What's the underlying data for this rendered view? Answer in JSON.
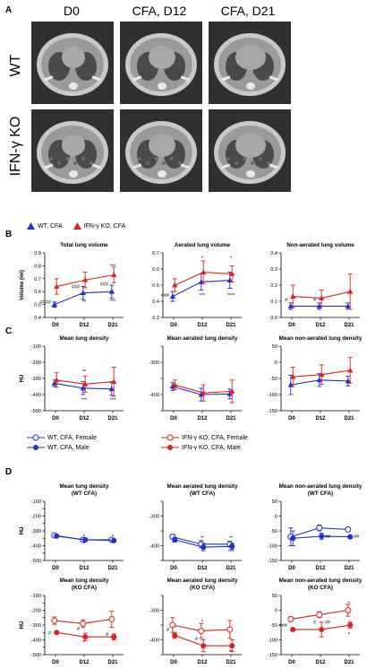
{
  "panelA": {
    "letter": "A",
    "columns": [
      "D0",
      "CFA, D12",
      "CFA, D21"
    ],
    "rows": [
      "WT",
      "IFN-γ KO"
    ]
  },
  "panelB": {
    "letter": "B",
    "legend": [
      {
        "label": "WT, CFA",
        "color": "#1f2fd0"
      },
      {
        "label": "IFN-γ KO, CFA",
        "color": "#e0201f"
      }
    ]
  },
  "panelC": {
    "letter": "C"
  },
  "panelD": {
    "letter": "D",
    "legend": [
      {
        "label": "WT, CFA, Female",
        "color": "#1f2fd0",
        "fill": "open"
      },
      {
        "label": "IFN-γ KO, CFA, Female",
        "color": "#e0201f",
        "fill": "open"
      },
      {
        "label": "WT, CFA, Male",
        "color": "#1f2fd0",
        "fill": "filled"
      },
      {
        "label": "IFN-γ KO, CFA, Male",
        "color": "#e0201f",
        "fill": "filled"
      }
    ]
  },
  "chart_data": [
    {
      "id": "b1",
      "type": "line",
      "title": "Total lung volume",
      "ylabel": "Volume (ml)",
      "categories": [
        "D0",
        "D12",
        "D21"
      ],
      "ylim": [
        0.4,
        0.9
      ],
      "yticks": [
        0.4,
        0.5,
        0.6,
        0.7,
        0.8,
        0.9
      ],
      "ytick_labels": [
        "0.4",
        "0.5",
        "0.6",
        "0.7",
        "0.8",
        "0.9"
      ],
      "series": [
        {
          "color": "#1f2fd0",
          "marker": "triangle",
          "values": [
            0.5,
            0.59,
            0.6
          ],
          "err": [
            0.02,
            0.05,
            0.05
          ]
        },
        {
          "color": "#e0201f",
          "marker": "triangle",
          "values": [
            0.64,
            0.69,
            0.73
          ],
          "err": [
            0.06,
            0.06,
            0.06
          ]
        }
      ],
      "annotations": [
        {
          "x": 0,
          "text": "####",
          "y": 0.52,
          "side": "left"
        },
        {
          "x": 1,
          "text": "###",
          "y": 0.64,
          "side": "left"
        },
        {
          "x": 2,
          "text": "###",
          "y": 0.66,
          "side": "left"
        },
        {
          "x": 1,
          "text": "**",
          "y": 0.52
        },
        {
          "x": 2,
          "text": "***",
          "y": 0.8
        },
        {
          "x": 2,
          "text": "***",
          "y": 0.53
        }
      ]
    },
    {
      "id": "b2",
      "type": "line",
      "title": "Aerated lung volume",
      "ylabel": "",
      "categories": [
        "D0",
        "D12",
        "D21"
      ],
      "ylim": [
        0.3,
        0.7
      ],
      "yticks": [
        0.3,
        0.4,
        0.5,
        0.6,
        0.7
      ],
      "ytick_labels": [
        "0.3",
        "0.4",
        "0.5",
        "0.6",
        "0.7"
      ],
      "series": [
        {
          "color": "#1f2fd0",
          "marker": "triangle",
          "values": [
            0.43,
            0.52,
            0.53
          ],
          "err": [
            0.03,
            0.05,
            0.05
          ]
        },
        {
          "color": "#e0201f",
          "marker": "triangle",
          "values": [
            0.5,
            0.58,
            0.57
          ],
          "err": [
            0.04,
            0.07,
            0.05
          ]
        }
      ],
      "annotations": [
        {
          "x": 0,
          "text": "###",
          "y": 0.44,
          "side": "left"
        },
        {
          "x": 1,
          "text": "*",
          "y": 0.67
        },
        {
          "x": 1,
          "text": "***",
          "y": 0.44
        },
        {
          "x": 2,
          "text": "*",
          "y": 0.67
        },
        {
          "x": 2,
          "text": "****",
          "y": 0.44
        }
      ]
    },
    {
      "id": "b3",
      "type": "line",
      "title": "Non-aerated lung volume",
      "ylabel": "",
      "categories": [
        "D0",
        "D12",
        "D21"
      ],
      "ylim": [
        0.0,
        0.4
      ],
      "yticks": [
        0.0,
        0.1,
        0.2,
        0.3,
        0.4
      ],
      "ytick_labels": [
        "0.0",
        "0.1",
        "0.2",
        "0.3",
        "0.4"
      ],
      "series": [
        {
          "color": "#1f2fd0",
          "marker": "triangle",
          "values": [
            0.07,
            0.07,
            0.07
          ],
          "err": [
            0.02,
            0.02,
            0.02
          ]
        },
        {
          "color": "#e0201f",
          "marker": "triangle",
          "values": [
            0.13,
            0.12,
            0.16
          ],
          "err": [
            0.07,
            0.05,
            0.11
          ]
        }
      ],
      "annotations": [
        {
          "x": 0,
          "text": "#",
          "y": 0.11,
          "side": "left"
        },
        {
          "x": 1,
          "text": "#",
          "y": 0.11,
          "side": "left"
        }
      ]
    },
    {
      "id": "c1",
      "type": "line",
      "title": "Mean lung density",
      "ylabel": "HU",
      "categories": [
        "D0",
        "D12",
        "D21"
      ],
      "ylim": [
        -500,
        -100
      ],
      "yticks": [
        -500,
        -400,
        -300,
        -200,
        -100
      ],
      "ytick_labels": [
        "-500",
        "-400",
        "-300",
        "-200",
        "-100"
      ],
      "series": [
        {
          "color": "#1f2fd0",
          "marker": "triangle",
          "values": [
            -330,
            -360,
            -365
          ],
          "err": [
            20,
            40,
            40
          ]
        },
        {
          "color": "#e0201f",
          "marker": "triangle",
          "values": [
            -310,
            -335,
            -320
          ],
          "err": [
            45,
            50,
            90
          ]
        }
      ],
      "annotations": [
        {
          "x": 1,
          "text": "**",
          "y": -255
        },
        {
          "x": 1,
          "text": "***",
          "y": -430
        },
        {
          "x": 2,
          "text": "***",
          "y": -430
        }
      ]
    },
    {
      "id": "c2",
      "type": "line",
      "title": "Mean aerated lung density",
      "ylabel": "",
      "categories": [
        "D0",
        "D12",
        "D21"
      ],
      "ylim": [
        -450,
        -250
      ],
      "yticks": [
        -450,
        -400,
        -350,
        -300,
        -250
      ],
      "ytick_labels": [
        "",
        "-400",
        "",
        "-300",
        ""
      ],
      "series": [
        {
          "color": "#1f2fd0",
          "marker": "triangle",
          "values": [
            -375,
            -400,
            -398
          ],
          "err": [
            12,
            20,
            15
          ]
        },
        {
          "color": "#e0201f",
          "marker": "triangle",
          "values": [
            -370,
            -395,
            -390
          ],
          "err": [
            15,
            25,
            35
          ]
        }
      ],
      "annotations": []
    },
    {
      "id": "c3",
      "type": "line",
      "title": "Mean non-aerated lung density",
      "ylabel": "",
      "categories": [
        "D0",
        "D12",
        "D21"
      ],
      "ylim": [
        -150,
        50
      ],
      "yticks": [
        -150,
        -100,
        -50,
        0,
        50
      ],
      "ytick_labels": [
        "-150",
        "-100",
        "-50",
        "0",
        "50"
      ],
      "series": [
        {
          "color": "#1f2fd0",
          "marker": "triangle",
          "values": [
            -70,
            -55,
            -58
          ],
          "err": [
            30,
            20,
            15
          ]
        },
        {
          "color": "#e0201f",
          "marker": "triangle",
          "values": [
            -45,
            -38,
            -25
          ],
          "err": [
            30,
            30,
            40
          ]
        }
      ],
      "annotations": []
    },
    {
      "id": "d1",
      "type": "line",
      "title": "Mean lung density",
      "subtitle": "(WT CFA)",
      "ylabel": "HU",
      "categories": [
        "D0",
        "D12",
        "D21"
      ],
      "ylim": [
        -500,
        -100
      ],
      "yticks": [
        -500,
        -450,
        -400,
        -350,
        -300,
        -250,
        -200,
        -150,
        -100
      ],
      "ytick_labels": [
        "-500",
        "",
        "-400",
        "",
        "-300",
        "",
        "-200",
        "",
        "-100"
      ],
      "series": [
        {
          "color": "#1f2fd0",
          "marker": "circle-open",
          "values": [
            -330,
            -360,
            -360
          ],
          "err": [
            8,
            10,
            8
          ]
        },
        {
          "color": "#1f2fd0",
          "marker": "circle",
          "values": [
            -335,
            -360,
            -365
          ],
          "err": [
            8,
            12,
            10
          ]
        }
      ],
      "annotations": [
        {
          "x": 1,
          "text": "*",
          "y": -335
        },
        {
          "x": 1,
          "text": "*",
          "y": -385
        },
        {
          "x": 2,
          "text": "*",
          "y": -335
        },
        {
          "x": 2,
          "text": "*",
          "y": -385
        }
      ]
    },
    {
      "id": "d2",
      "type": "line",
      "title": "Mean aerated lung density",
      "subtitle": "(WT CFA)",
      "ylabel": "",
      "categories": [
        "D0",
        "D12",
        "D21"
      ],
      "ylim": [
        -450,
        -250
      ],
      "yticks": [
        -450,
        -400,
        -350,
        -300,
        -250
      ],
      "ytick_labels": [
        "",
        "-400",
        "",
        "-300",
        ""
      ],
      "series": [
        {
          "color": "#1f2fd0",
          "marker": "circle-open",
          "values": [
            -370,
            -395,
            -395
          ],
          "err": [
            8,
            12,
            10
          ]
        },
        {
          "color": "#1f2fd0",
          "marker": "circle",
          "values": [
            -380,
            -405,
            -402
          ],
          "err": [
            8,
            12,
            10
          ]
        }
      ],
      "annotations": [
        {
          "x": 1,
          "text": "**",
          "y": -372
        },
        {
          "x": 2,
          "text": "**",
          "y": -372
        },
        {
          "x": 2,
          "text": "***",
          "y": -420
        }
      ]
    },
    {
      "id": "d3",
      "type": "line",
      "title": "Mean non-aerated lung density",
      "subtitle": "(WT CFA)",
      "ylabel": "",
      "categories": [
        "D0",
        "D12",
        "D21"
      ],
      "ylim": [
        -150,
        50
      ],
      "yticks": [
        -150,
        -100,
        -50,
        0,
        50
      ],
      "ytick_labels": [
        "-150",
        "-100",
        "-50",
        "0",
        "50"
      ],
      "series": [
        {
          "color": "#1f2fd0",
          "marker": "circle-open",
          "values": [
            -70,
            -40,
            -45
          ],
          "err": [
            30,
            10,
            5
          ]
        },
        {
          "color": "#1f2fd0",
          "marker": "circle",
          "values": [
            -75,
            -68,
            -70
          ],
          "err": [
            25,
            10,
            5
          ]
        }
      ],
      "annotations": [
        {
          "x": 1,
          "text": "##",
          "y": -68,
          "side": "right"
        },
        {
          "x": 2,
          "text": "##",
          "y": -68,
          "side": "right"
        }
      ]
    },
    {
      "id": "d4",
      "type": "line",
      "title": "Mean lung density",
      "subtitle": "(KO CFA)",
      "ylabel": "HU",
      "categories": [
        "D0",
        "D12",
        "D21"
      ],
      "ylim": [
        -500,
        -100
      ],
      "yticks": [
        -500,
        -450,
        -400,
        -350,
        -300,
        -250,
        -200,
        -150,
        -100
      ],
      "ytick_labels": [
        "-500",
        "",
        "-400",
        "",
        "-300",
        "",
        "-200",
        "",
        "-100"
      ],
      "series": [
        {
          "color": "#e0201f",
          "marker": "circle-open",
          "values": [
            -270,
            -290,
            -260
          ],
          "err": [
            25,
            25,
            55
          ]
        },
        {
          "color": "#e0201f",
          "marker": "circle",
          "values": [
            -350,
            -380,
            -380
          ],
          "err": [
            8,
            25,
            20
          ]
        }
      ],
      "annotations": [
        {
          "x": 0,
          "text": "#",
          "y": -350,
          "side": "left"
        },
        {
          "x": 1,
          "text": "#",
          "y": -325,
          "side": "left"
        },
        {
          "x": 2,
          "text": "#",
          "y": -360,
          "side": "left"
        },
        {
          "x": 1,
          "text": "*",
          "y": -415
        }
      ]
    },
    {
      "id": "d5",
      "type": "line",
      "title": "Mean aerated lung density",
      "subtitle": "(KO CFA)",
      "ylabel": "",
      "categories": [
        "D0",
        "D12",
        "D21"
      ],
      "ylim": [
        -450,
        -250
      ],
      "yticks": [
        -450,
        -400,
        -350,
        -300,
        -250
      ],
      "ytick_labels": [
        "",
        "-400",
        "",
        "-300",
        ""
      ],
      "series": [
        {
          "color": "#e0201f",
          "marker": "circle-open",
          "values": [
            -350,
            -370,
            -365
          ],
          "err": [
            25,
            25,
            30
          ]
        },
        {
          "color": "#e0201f",
          "marker": "circle",
          "values": [
            -385,
            -420,
            -420
          ],
          "err": [
            10,
            20,
            20
          ]
        }
      ],
      "annotations": [
        {
          "x": 0,
          "text": "#",
          "y": -365,
          "side": "left"
        },
        {
          "x": 1,
          "text": "#",
          "y": -395,
          "side": "left"
        },
        {
          "x": 1,
          "text": "*",
          "y": -338
        },
        {
          "x": 2,
          "text": "**",
          "y": -440
        }
      ]
    },
    {
      "id": "d6",
      "type": "line",
      "title": "Mean non-aerated lung density",
      "subtitle": "(KO CFA)",
      "ylabel": "",
      "categories": [
        "D0",
        "D12",
        "D21"
      ],
      "ylim": [
        -150,
        50
      ],
      "yticks": [
        -150,
        -100,
        -50,
        0,
        50
      ],
      "ytick_labels": [
        "-150",
        "-100",
        "-50",
        "0",
        "50"
      ],
      "series": [
        {
          "color": "#e0201f",
          "marker": "circle-open",
          "values": [
            -30,
            -15,
            0
          ],
          "err": [
            8,
            10,
            20
          ]
        },
        {
          "color": "#e0201f",
          "marker": "circle",
          "values": [
            -65,
            -65,
            -50
          ],
          "err": [
            5,
            25,
            10
          ]
        }
      ],
      "annotations": [
        {
          "x": 0,
          "text": "###",
          "y": -50,
          "side": "left"
        },
        {
          "x": 1,
          "text": "#",
          "y": -40,
          "side": "left"
        },
        {
          "x": 1,
          "text": "##",
          "y": -40,
          "side": "right"
        },
        {
          "x": 2,
          "text": "*",
          "y": 25
        },
        {
          "x": 2,
          "text": "*",
          "y": -80
        }
      ]
    }
  ]
}
